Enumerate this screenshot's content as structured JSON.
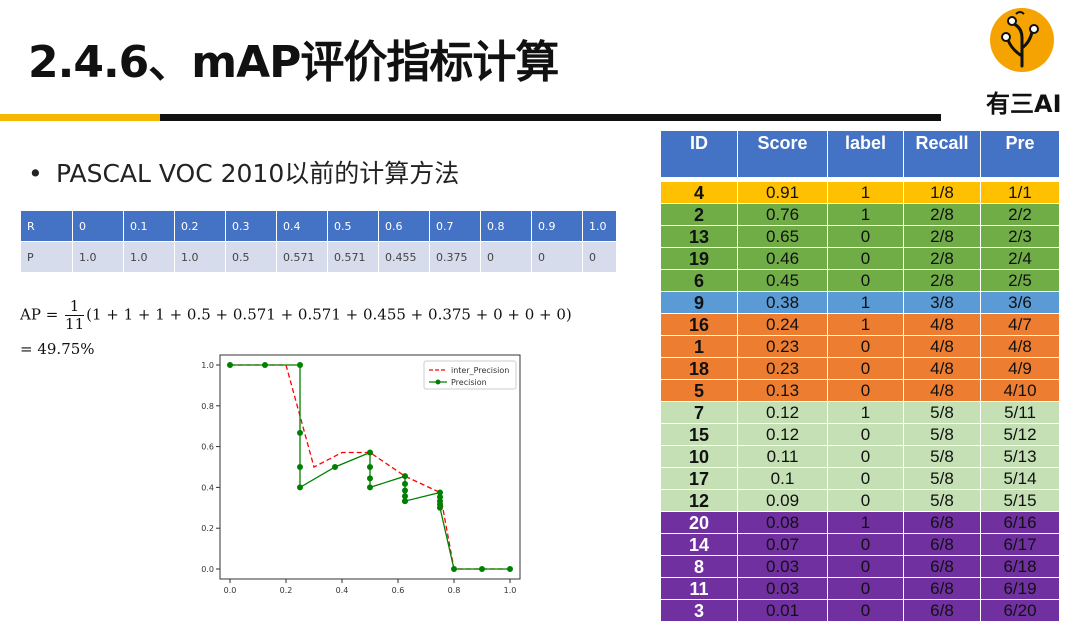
{
  "title": "2.4.6、mAP评价指标计算",
  "logo_text": "有三AI",
  "bullet": "PASCAL VOC 2010以前的计算方法",
  "rp_table": {
    "r_label": "R",
    "p_label": "P",
    "r_values": [
      "0",
      "0.1",
      "0.2",
      "0.3",
      "0.4",
      "0.5",
      "0.6",
      "0.7",
      "0.8",
      "0.9",
      "1.0"
    ],
    "p_values": [
      "1.0",
      "1.0",
      "1.0",
      "0.5",
      "0.571",
      "0.571",
      "0.455",
      "0.375",
      "0",
      "0",
      "0"
    ]
  },
  "formula": {
    "lhs": "AP = ",
    "numerator": "1",
    "denominator": "11",
    "expression": "(1 + 1 + 1 + 0.5 + 0.571 + 0.571 + 0.455 + 0.375 + 0 + 0 + 0)",
    "result": "= 49.75%"
  },
  "chart_data": {
    "type": "line",
    "xlim": [
      0,
      1.0
    ],
    "ylim": [
      0,
      1.0
    ],
    "x_ticks": [
      "0.0",
      "0.2",
      "0.4",
      "0.6",
      "0.8",
      "1.0"
    ],
    "y_ticks": [
      "0.0",
      "0.2",
      "0.4",
      "0.6",
      "0.8",
      "1.0"
    ],
    "legend_position": "top-right",
    "series": [
      {
        "name": "inter_Precision",
        "color": "#ff0000",
        "style": "dashed",
        "x": [
          0,
          0.125,
          0.2,
          0.25,
          0.3,
          0.4,
          0.5,
          0.625,
          0.75,
          0.8,
          0.9,
          1.0
        ],
        "y": [
          1.0,
          1.0,
          1.0,
          0.75,
          0.5,
          0.571,
          0.571,
          0.455,
          0.375,
          0,
          0,
          0
        ]
      },
      {
        "name": "Precision",
        "color": "#008000",
        "style": "solid-marker",
        "x": [
          0,
          0.125,
          0.25,
          0.25,
          0.25,
          0.25,
          0.375,
          0.5,
          0.5,
          0.5,
          0.5,
          0.625,
          0.625,
          0.625,
          0.625,
          0.625,
          0.625,
          0.75,
          0.75,
          0.75,
          0.75,
          0.75,
          0.8,
          0.9,
          1.0
        ],
        "y": [
          1.0,
          1.0,
          1.0,
          0.667,
          0.5,
          0.4,
          0.5,
          0.571,
          0.5,
          0.444,
          0.4,
          0.455,
          0.417,
          0.385,
          0.357,
          0.333,
          0.333,
          0.375,
          0.353,
          0.333,
          0.316,
          0.3,
          0,
          0,
          0
        ]
      }
    ]
  },
  "main_table": {
    "headers": [
      "ID",
      "Score",
      "label",
      "Recall",
      "Pre"
    ],
    "rows": [
      {
        "id": "4",
        "score": "0.91",
        "label": "1",
        "recall": "1/8",
        "pre": "1/1",
        "color": "#ffc000"
      },
      {
        "id": "2",
        "score": "0.76",
        "label": "1",
        "recall": "2/8",
        "pre": "2/2",
        "color": "#70ad47"
      },
      {
        "id": "13",
        "score": "0.65",
        "label": "0",
        "recall": "2/8",
        "pre": "2/3",
        "color": "#70ad47"
      },
      {
        "id": "19",
        "score": "0.46",
        "label": "0",
        "recall": "2/8",
        "pre": "2/4",
        "color": "#70ad47"
      },
      {
        "id": "6",
        "score": "0.45",
        "label": "0",
        "recall": "2/8",
        "pre": "2/5",
        "color": "#70ad47"
      },
      {
        "id": "9",
        "score": "0.38",
        "label": "1",
        "recall": "3/8",
        "pre": "3/6",
        "color": "#5b9bd5"
      },
      {
        "id": "16",
        "score": "0.24",
        "label": "1",
        "recall": "4/8",
        "pre": "4/7",
        "color": "#ed7d31"
      },
      {
        "id": "1",
        "score": "0.23",
        "label": "0",
        "recall": "4/8",
        "pre": "4/8",
        "color": "#ed7d31"
      },
      {
        "id": "18",
        "score": "0.23",
        "label": "0",
        "recall": "4/8",
        "pre": "4/9",
        "color": "#ed7d31"
      },
      {
        "id": "5",
        "score": "0.13",
        "label": "0",
        "recall": "4/8",
        "pre": "4/10",
        "color": "#ed7d31"
      },
      {
        "id": "7",
        "score": "0.12",
        "label": "1",
        "recall": "5/8",
        "pre": "5/11",
        "color": "#c5e0b4"
      },
      {
        "id": "15",
        "score": "0.12",
        "label": "0",
        "recall": "5/8",
        "pre": "5/12",
        "color": "#c5e0b4"
      },
      {
        "id": "10",
        "score": "0.11",
        "label": "0",
        "recall": "5/8",
        "pre": "5/13",
        "color": "#c5e0b4"
      },
      {
        "id": "17",
        "score": "0.1",
        "label": "0",
        "recall": "5/8",
        "pre": "5/14",
        "color": "#c5e0b4"
      },
      {
        "id": "12",
        "score": "0.09",
        "label": "0",
        "recall": "5/8",
        "pre": "5/15",
        "color": "#c5e0b4"
      },
      {
        "id": "20",
        "score": "0.08",
        "label": "1",
        "recall": "6/8",
        "pre": "6/16",
        "color": "#7030a0"
      },
      {
        "id": "14",
        "score": "0.07",
        "label": "0",
        "recall": "6/8",
        "pre": "6/17",
        "color": "#7030a0"
      },
      {
        "id": "8",
        "score": "0.03",
        "label": "0",
        "recall": "6/8",
        "pre": "6/18",
        "color": "#7030a0"
      },
      {
        "id": "11",
        "score": "0.03",
        "label": "0",
        "recall": "6/8",
        "pre": "6/19",
        "color": "#7030a0"
      },
      {
        "id": "3",
        "score": "0.01",
        "label": "0",
        "recall": "6/8",
        "pre": "6/20",
        "color": "#7030a0"
      }
    ]
  }
}
